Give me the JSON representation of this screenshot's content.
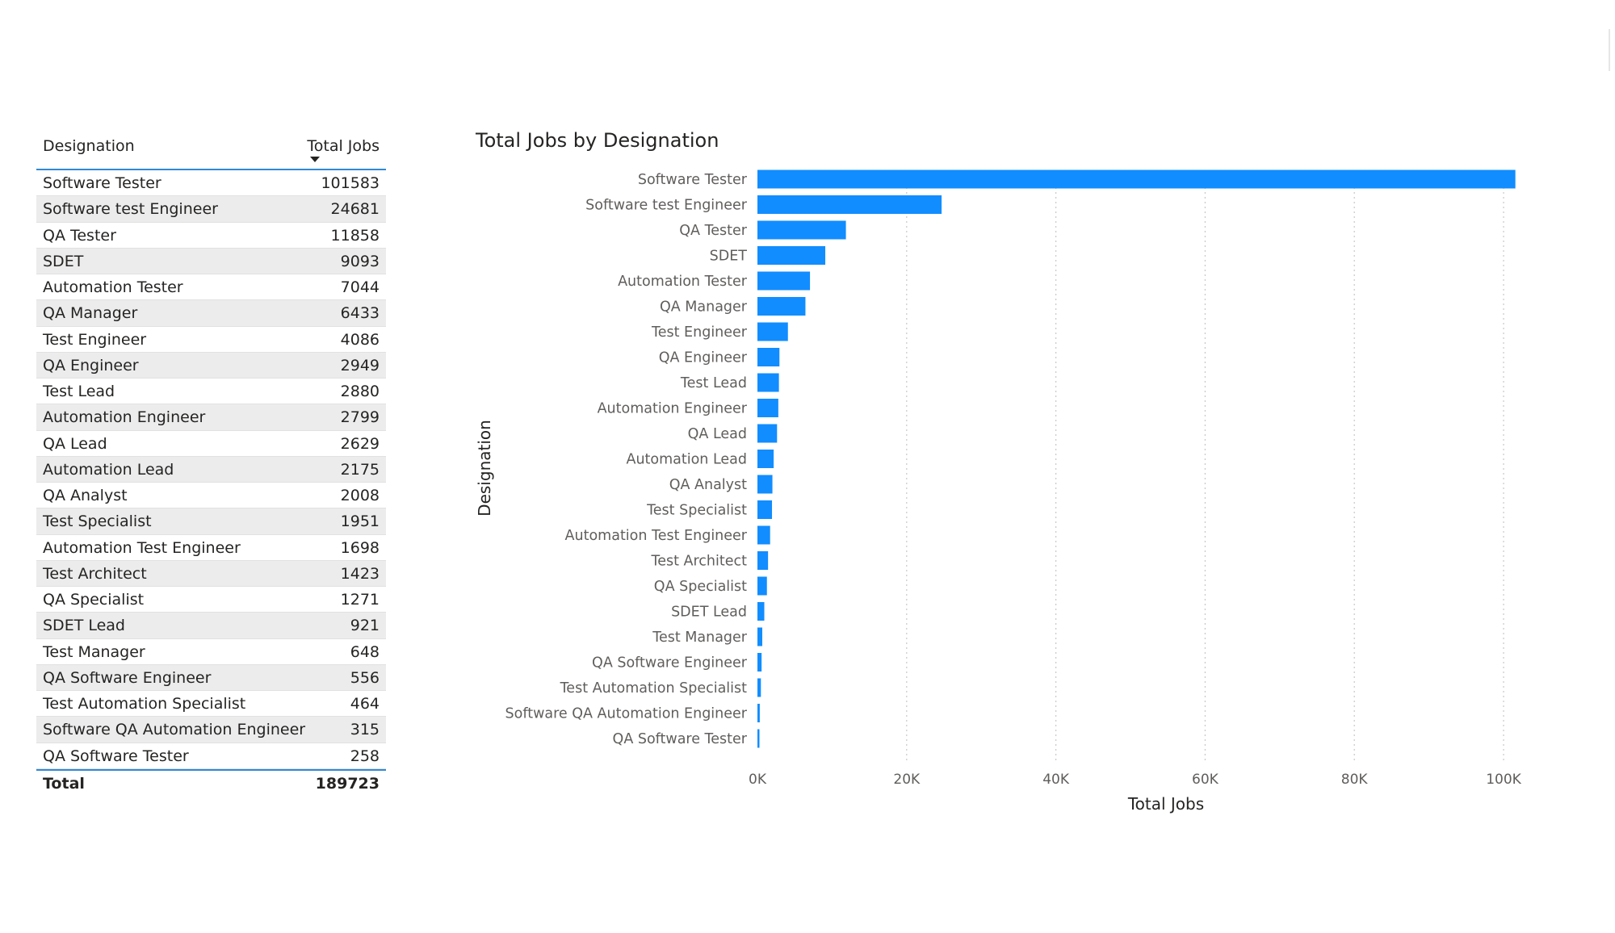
{
  "table": {
    "headers": {
      "designation": "Designation",
      "total_jobs": "Total Jobs"
    },
    "rows": [
      {
        "designation": "Software Tester",
        "total_jobs": "101583"
      },
      {
        "designation": "Software test Engineer",
        "total_jobs": "24681"
      },
      {
        "designation": "QA Tester",
        "total_jobs": "11858"
      },
      {
        "designation": "SDET",
        "total_jobs": "9093"
      },
      {
        "designation": "Automation Tester",
        "total_jobs": "7044"
      },
      {
        "designation": "QA Manager",
        "total_jobs": "6433"
      },
      {
        "designation": "Test Engineer",
        "total_jobs": "4086"
      },
      {
        "designation": "QA Engineer",
        "total_jobs": "2949"
      },
      {
        "designation": "Test Lead",
        "total_jobs": "2880"
      },
      {
        "designation": "Automation Engineer",
        "total_jobs": "2799"
      },
      {
        "designation": "QA Lead",
        "total_jobs": "2629"
      },
      {
        "designation": "Automation Lead",
        "total_jobs": "2175"
      },
      {
        "designation": "QA Analyst",
        "total_jobs": "2008"
      },
      {
        "designation": "Test Specialist",
        "total_jobs": "1951"
      },
      {
        "designation": "Automation Test Engineer",
        "total_jobs": "1698"
      },
      {
        "designation": "Test Architect",
        "total_jobs": "1423"
      },
      {
        "designation": "QA Specialist",
        "total_jobs": "1271"
      },
      {
        "designation": "SDET Lead",
        "total_jobs": "921"
      },
      {
        "designation": "Test Manager",
        "total_jobs": "648"
      },
      {
        "designation": "QA Software Engineer",
        "total_jobs": "556"
      },
      {
        "designation": "Test Automation Specialist",
        "total_jobs": "464"
      },
      {
        "designation": "Software QA Automation Engineer",
        "total_jobs": "315"
      },
      {
        "designation": "QA Software Tester",
        "total_jobs": "258"
      }
    ],
    "total": {
      "label": "Total",
      "value": "189723"
    }
  },
  "chart_data": {
    "type": "bar",
    "orientation": "horizontal",
    "title": "Total Jobs by Designation",
    "xlabel": "Total Jobs",
    "ylabel": "Designation",
    "categories": [
      "Software Tester",
      "Software test Engineer",
      "QA Tester",
      "SDET",
      "Automation Tester",
      "QA Manager",
      "Test Engineer",
      "QA Engineer",
      "Test Lead",
      "Automation Engineer",
      "QA Lead",
      "Automation Lead",
      "QA Analyst",
      "Test Specialist",
      "Automation Test Engineer",
      "Test Architect",
      "QA Specialist",
      "SDET Lead",
      "Test Manager",
      "QA Software Engineer",
      "Test Automation Specialist",
      "Software QA Automation Engineer",
      "QA Software Tester"
    ],
    "values": [
      101583,
      24681,
      11858,
      9093,
      7044,
      6433,
      4086,
      2949,
      2880,
      2799,
      2629,
      2175,
      2008,
      1951,
      1698,
      1423,
      1271,
      921,
      648,
      556,
      464,
      315,
      258
    ],
    "xticks": [
      0,
      20000,
      40000,
      60000,
      80000,
      100000
    ],
    "xtick_labels": [
      "0K",
      "20K",
      "40K",
      "60K",
      "80K",
      "100K"
    ],
    "xlim": [
      0,
      100000
    ],
    "grid": true,
    "bar_color": "#118dff"
  }
}
